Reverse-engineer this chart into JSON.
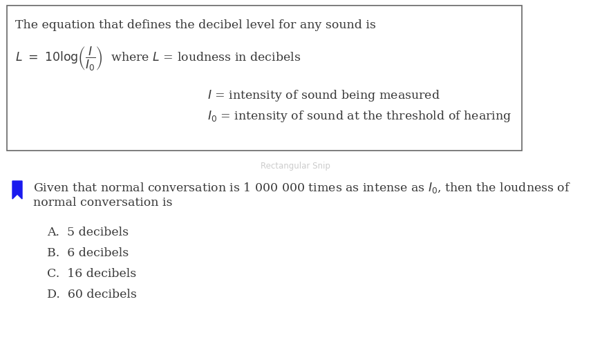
{
  "bg_color": "#ffffff",
  "box_edge_color": "#666666",
  "text_color": "#3a3a3a",
  "icon_color": "#1a1aee",
  "line1_text": "The equation that defines the decibel level for any sound is",
  "line3_text": "$I$ = intensity of sound being measured",
  "line4_text": "$I_0$ = intensity of sound at the threshold of hearing",
  "question_line1": "Given that normal conversation is 1 000 000 times as intense as $I_0$, then the loudness of",
  "question_line2": "normal conversation is",
  "choice_A": "A.  5 decibels",
  "choice_B": "B.  6 decibels",
  "choice_C": "C.  16 decibels",
  "choice_D": "D.  60 decibels",
  "watermark": "Rectangular Snip",
  "font_size_main": 12.5
}
